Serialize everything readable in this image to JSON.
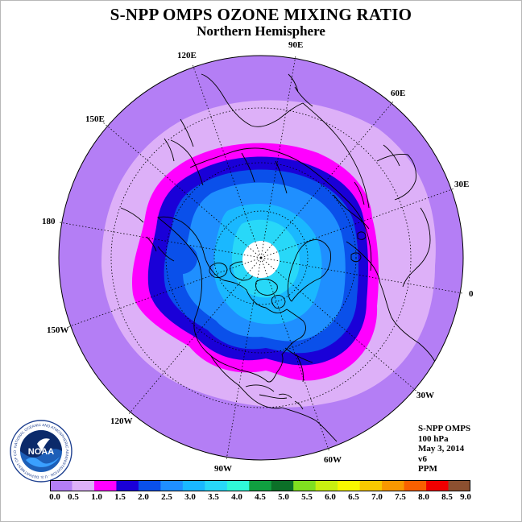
{
  "title": "S-NPP OMPS OZONE MIXING RATIO",
  "subtitle": "Northern Hemisphere",
  "longitude_labels": [
    "90E",
    "60E",
    "30E",
    "0",
    "30W",
    "60W",
    "90W",
    "120W",
    "150W",
    "180",
    "150E",
    "120E"
  ],
  "info": {
    "instrument": "S-NPP OMPS",
    "pressure": "100 hPa",
    "date": "May 3, 2014",
    "version": "v6",
    "units": "PPM"
  },
  "logo": {
    "text": "NOAA",
    "ring_text": "NATIONAL OCEANIC AND ATMOSPHERIC ADMINISTRATION · U.S. DEPARTMENT OF COMMERCE"
  },
  "colorbar": {
    "ticks": [
      "0.0",
      "0.5",
      "1.0",
      "1.5",
      "2.0",
      "2.5",
      "3.0",
      "3.5",
      "4.0",
      "4.5",
      "5.0",
      "5.5",
      "6.0",
      "6.5",
      "7.0",
      "7.5",
      "8.0",
      "8.5",
      "9.0"
    ],
    "colors": [
      "#b47ef5",
      "#ddb0f8",
      "#ff00ff",
      "#1a00d8",
      "#0a50ea",
      "#1f8fff",
      "#1ab8ff",
      "#28d8f8",
      "#30f8d8",
      "#10a040",
      "#0c7028",
      "#80e020",
      "#c8f010",
      "#f8f800",
      "#f8c800",
      "#f89800",
      "#f86000",
      "#f00000",
      "#8c5030"
    ]
  },
  "plot_colors": {
    "band_0_5": "#b47ef5",
    "band_0_5_1_0": "#ddb0f8",
    "band_1_0_1_5": "#ff00ff",
    "band_1_5_2_0": "#1a00d8",
    "band_2_0_2_5": "#0a50ea",
    "band_2_5_3_0": "#1f8fff",
    "band_3_0_3_5": "#1ab8ff",
    "band_3_5_4_0": "#28d8f8",
    "no_data_pole": "#ffffff"
  }
}
